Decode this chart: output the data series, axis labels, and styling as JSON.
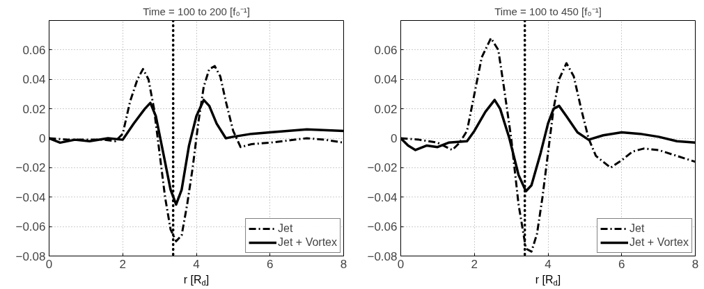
{
  "chart_data": [
    {
      "type": "line",
      "title": "Time = 100 to 200 [f₀⁻¹]",
      "xlabel": "r [R$_{d}$]",
      "xlim": [
        0,
        8
      ],
      "xticks": [
        0,
        2,
        4,
        6,
        8
      ],
      "ylim": [
        -0.08,
        0.08
      ],
      "yticks": [
        -0.08,
        -0.06,
        -0.04,
        -0.02,
        0,
        0.02,
        0.04,
        0.06
      ],
      "grid": true,
      "legend": "bottom right",
      "marker": "none",
      "ref_lines": [
        {
          "axis": "x",
          "value": 3.37,
          "color": "#000000",
          "line_style": "dotted"
        }
      ],
      "series": [
        {
          "name": "Jet",
          "color": "#000000",
          "line_style": "dashdot",
          "x": [
            0,
            0.5,
            1,
            1.5,
            1.8,
            2.0,
            2.2,
            2.4,
            2.55,
            2.7,
            2.85,
            3.0,
            3.15,
            3.3,
            3.45,
            3.6,
            3.75,
            3.9,
            4.05,
            4.2,
            4.35,
            4.5,
            4.65,
            4.8,
            5.0,
            5.2,
            5.5,
            6,
            7,
            7.5,
            8
          ],
          "values": [
            0,
            -0.001,
            -0.001,
            -0.001,
            -0.002,
            0.003,
            0.025,
            0.04,
            0.047,
            0.04,
            0.02,
            -0.01,
            -0.04,
            -0.062,
            -0.07,
            -0.066,
            -0.045,
            -0.02,
            0.01,
            0.035,
            0.047,
            0.049,
            0.042,
            0.025,
            0.005,
            -0.006,
            -0.004,
            -0.003,
            0,
            -0.001,
            -0.003
          ]
        },
        {
          "name": "Jet + Vortex",
          "color": "#000000",
          "line_style": "solid",
          "x": [
            0,
            0.3,
            0.7,
            1.1,
            1.6,
            2.0,
            2.3,
            2.6,
            2.75,
            2.9,
            3.1,
            3.3,
            3.45,
            3.6,
            3.8,
            4.0,
            4.2,
            4.35,
            4.55,
            4.8,
            5.0,
            5.5,
            6,
            7,
            8
          ],
          "values": [
            0,
            -0.003,
            -0.001,
            -0.002,
            0,
            -0.001,
            0.01,
            0.02,
            0.024,
            0.015,
            -0.01,
            -0.035,
            -0.045,
            -0.035,
            -0.005,
            0.015,
            0.026,
            0.022,
            0.01,
            0,
            0.001,
            0.003,
            0.004,
            0.006,
            0.005
          ]
        }
      ]
    },
    {
      "type": "line",
      "title": "Time = 100 to 450 [f₀⁻¹]",
      "xlabel": "r [R$_{d}$]",
      "xlim": [
        0,
        8
      ],
      "xticks": [
        0,
        2,
        4,
        6,
        8
      ],
      "ylim": [
        -0.08,
        0.08
      ],
      "yticks": [
        -0.08,
        -0.06,
        -0.04,
        -0.02,
        0,
        0.02,
        0.04,
        0.06
      ],
      "grid": true,
      "legend": "bottom right",
      "marker": "none",
      "ref_lines": [
        {
          "axis": "x",
          "value": 3.37,
          "color": "#000000",
          "line_style": "dotted"
        }
      ],
      "series": [
        {
          "name": "Jet",
          "color": "#000000",
          "line_style": "dashdot",
          "x": [
            0,
            0.5,
            1,
            1.4,
            1.6,
            1.8,
            2.0,
            2.2,
            2.45,
            2.65,
            2.8,
            3.0,
            3.2,
            3.4,
            3.55,
            3.7,
            3.85,
            4.0,
            4.15,
            4.3,
            4.5,
            4.7,
            4.9,
            5.1,
            5.3,
            5.7,
            6.0,
            6.3,
            6.6,
            7,
            7.5,
            8
          ],
          "values": [
            0,
            -0.001,
            -0.003,
            -0.008,
            -0.003,
            0.005,
            0.03,
            0.055,
            0.068,
            0.06,
            0.035,
            0,
            -0.045,
            -0.075,
            -0.077,
            -0.065,
            -0.04,
            -0.01,
            0.02,
            0.04,
            0.051,
            0.042,
            0.02,
            0,
            -0.012,
            -0.02,
            -0.015,
            -0.009,
            -0.007,
            -0.008,
            -0.012,
            -0.016
          ]
        },
        {
          "name": "Jet + Vortex",
          "color": "#000000",
          "line_style": "solid",
          "x": [
            0,
            0.2,
            0.4,
            0.7,
            1.0,
            1.3,
            1.8,
            2.0,
            2.3,
            2.55,
            2.7,
            2.95,
            3.2,
            3.4,
            3.55,
            3.8,
            4.0,
            4.15,
            4.3,
            4.5,
            4.8,
            5.1,
            5.5,
            6.0,
            6.5,
            7,
            7.5,
            8
          ],
          "values": [
            0,
            -0.005,
            -0.008,
            -0.005,
            -0.006,
            -0.003,
            -0.002,
            0.005,
            0.018,
            0.026,
            0.02,
            0,
            -0.025,
            -0.036,
            -0.032,
            -0.01,
            0.01,
            0.02,
            0.022,
            0.015,
            0.004,
            -0.001,
            0.002,
            0.004,
            0.003,
            0.001,
            -0.002,
            -0.003
          ]
        }
      ]
    }
  ]
}
